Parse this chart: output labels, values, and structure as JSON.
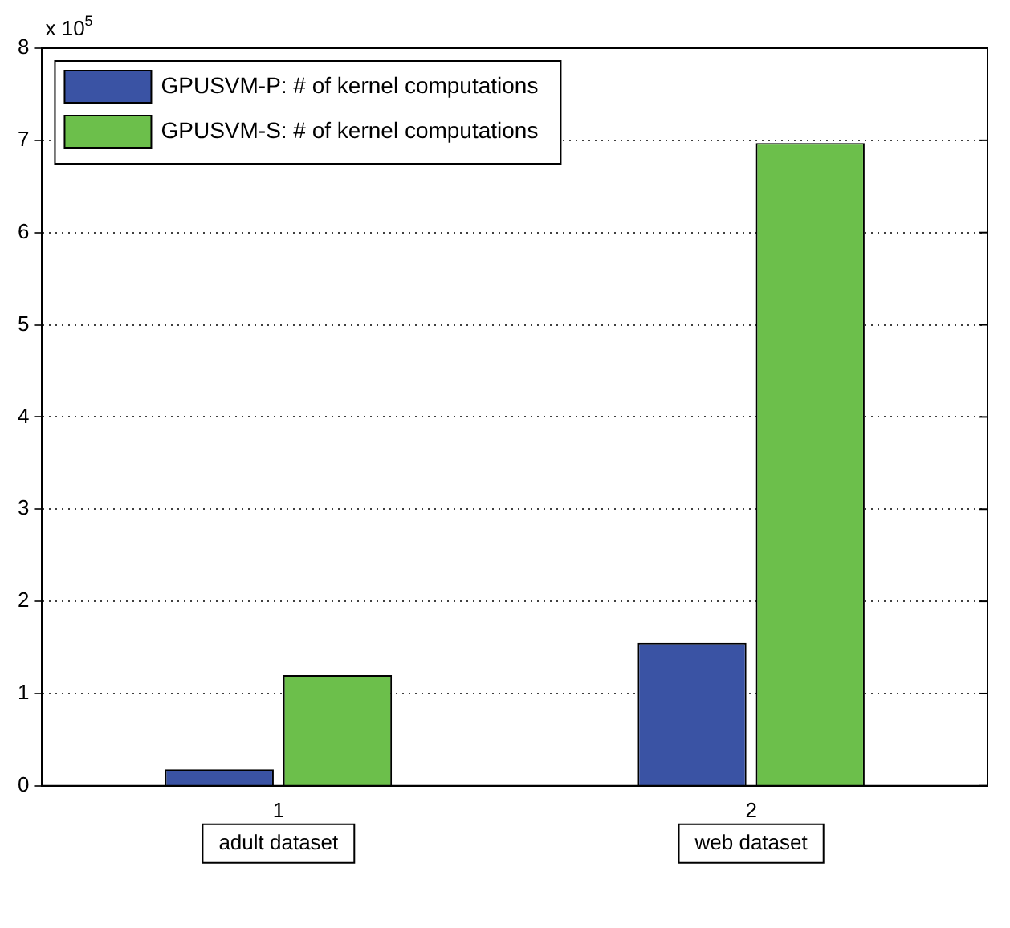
{
  "chart_data": {
    "type": "bar",
    "categories": [
      "1",
      "2"
    ],
    "series": [
      {
        "name": "GPUSVM-P: # of kernel computations",
        "color": "#3a53a4",
        "values": [
          0.18,
          1.55
        ]
      },
      {
        "name": "GPUSVM-S: # of kernel computations",
        "color": "#6cbf4b",
        "values": [
          1.2,
          6.97
        ]
      }
    ],
    "ylim": [
      0,
      8
    ],
    "yticks": [
      0,
      1,
      2,
      3,
      4,
      5,
      6,
      7,
      8
    ],
    "grid": "y",
    "legend": "top left",
    "annotations": [
      "x 10$^{5}$",
      "adult dataset",
      "web dataset"
    ]
  }
}
